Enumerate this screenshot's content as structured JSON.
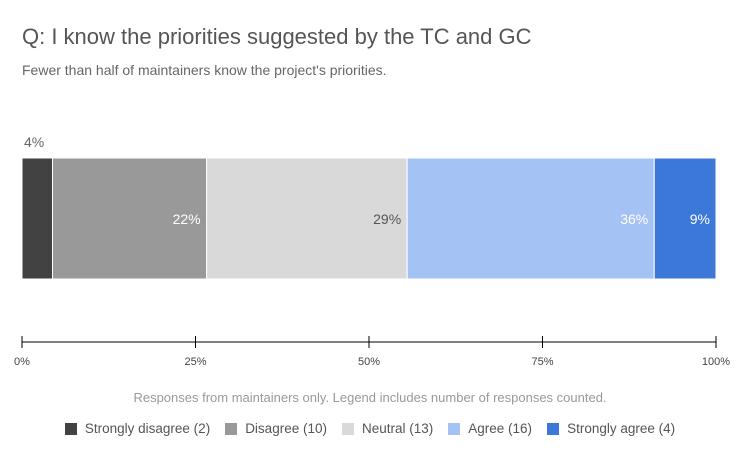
{
  "chart_data": {
    "type": "bar",
    "orientation": "horizontal",
    "stacked": "percent",
    "title": "Q: I know the priorities suggested by the TC and GC",
    "subtitle": "Fewer than half of maintainers know the project's priorities.",
    "xlabel": "Responses from maintainers only. Legend includes number of responses counted.",
    "xlim": [
      0,
      100
    ],
    "xticks": [
      "0%",
      "25%",
      "50%",
      "75%",
      "100%"
    ],
    "grid": false,
    "legend_position": "bottom",
    "series": [
      {
        "name": "Strongly disagree (2)",
        "count": 2,
        "value": 4.4,
        "label": "4%",
        "color": "#424242",
        "label_color": "#666666"
      },
      {
        "name": "Disagree (10)",
        "count": 10,
        "value": 22.2,
        "label": "22%",
        "color": "#999999",
        "label_color": "#ffffff"
      },
      {
        "name": "Neutral (13)",
        "count": 13,
        "value": 28.9,
        "label": "29%",
        "color": "#d9d9d9",
        "label_color": "#555555"
      },
      {
        "name": "Agree (16)",
        "count": 16,
        "value": 35.6,
        "label": "36%",
        "color": "#a4c2f4",
        "label_color": "#ffffff"
      },
      {
        "name": "Strongly agree (4)",
        "count": 4,
        "value": 8.9,
        "label": "9%",
        "color": "#3c78d8",
        "label_color": "#ffffff"
      }
    ]
  }
}
